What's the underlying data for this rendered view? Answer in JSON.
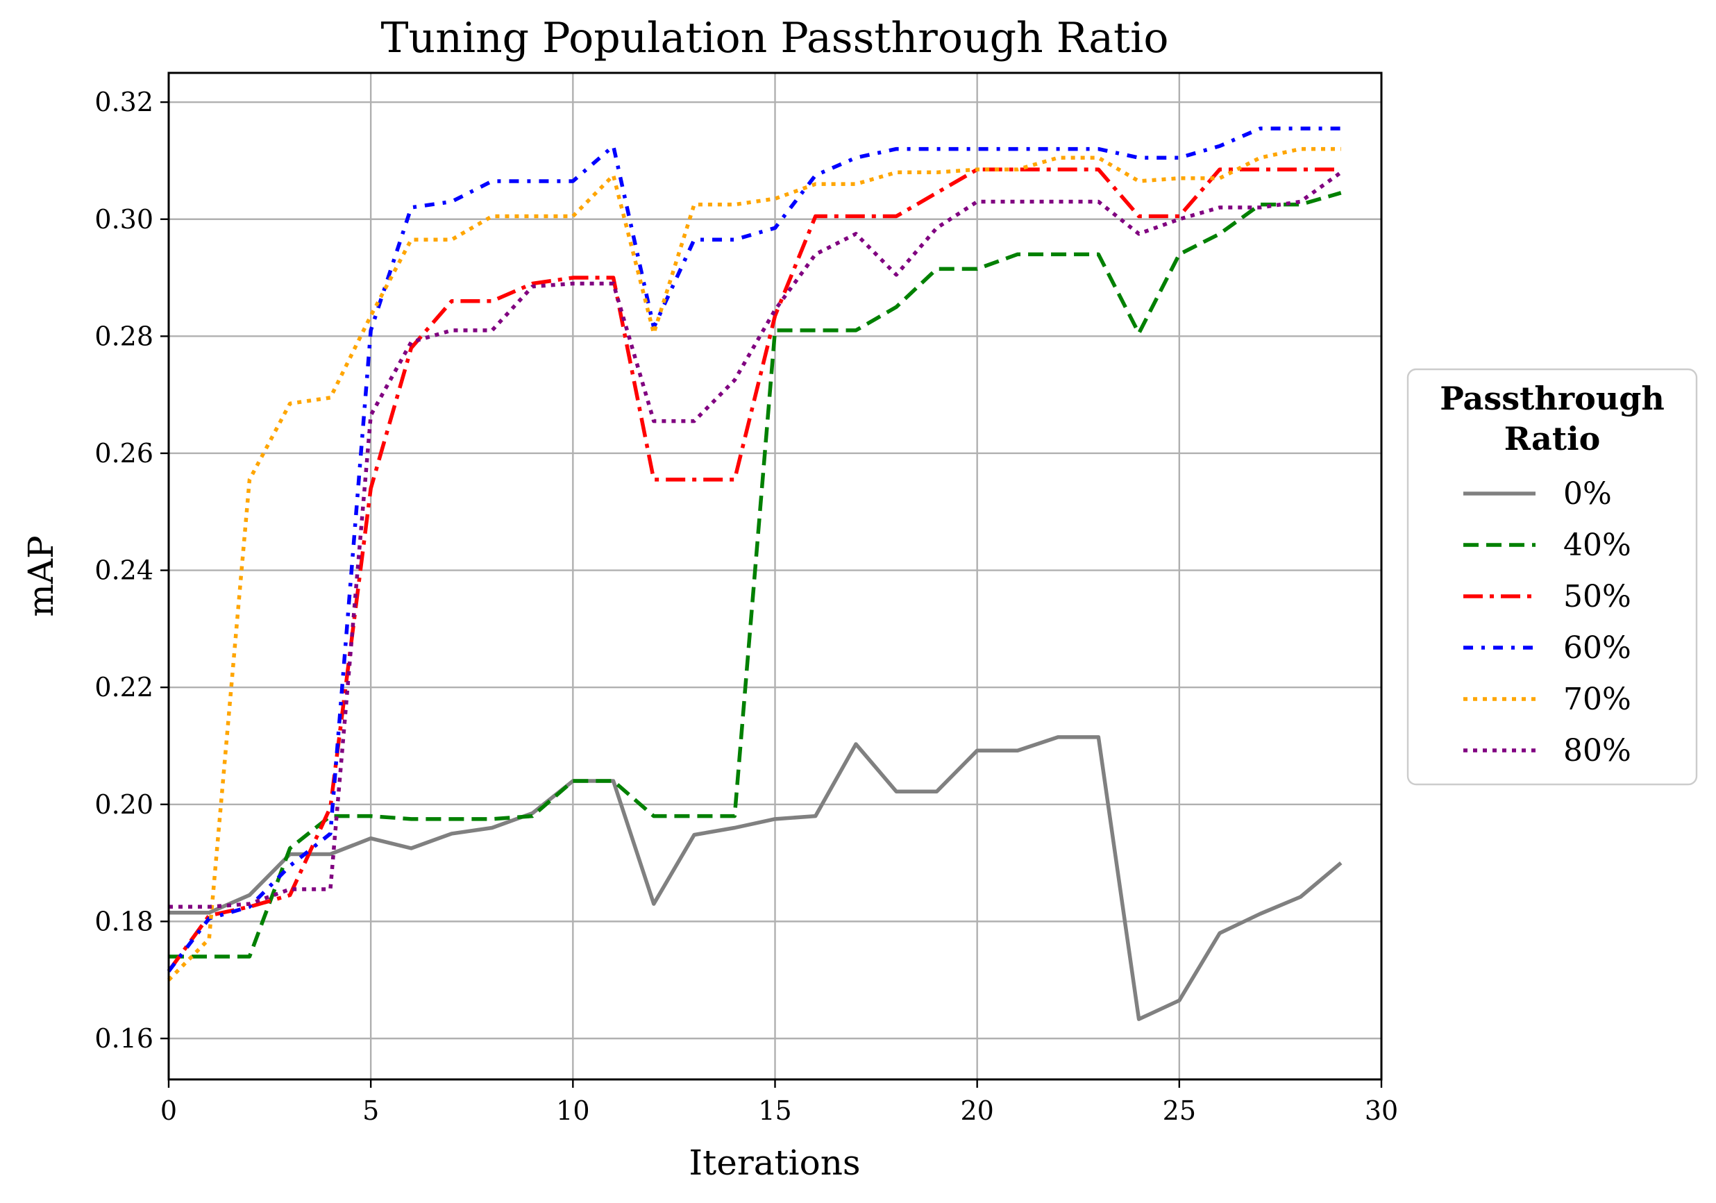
{
  "chart_data": {
    "type": "line",
    "title": "Tuning Population Passthrough Ratio",
    "xlabel": "Iterations",
    "ylabel": "mAP",
    "xlim": [
      0,
      30
    ],
    "ylim": [
      0.153,
      0.325
    ],
    "x_ticks": [
      0,
      5,
      10,
      15,
      20,
      25,
      30
    ],
    "y_ticks": [
      0.16,
      0.18,
      0.2,
      0.22,
      0.24,
      0.26,
      0.28,
      0.3,
      0.32
    ],
    "x_tick_labels": [
      "0",
      "5",
      "10",
      "15",
      "20",
      "25",
      "30"
    ],
    "y_tick_labels": [
      "0.16",
      "0.18",
      "0.20",
      "0.22",
      "0.24",
      "0.26",
      "0.28",
      "0.30",
      "0.32"
    ],
    "grid": true,
    "legend": {
      "title_line1": "Passthrough",
      "title_line2": "Ratio",
      "placement": "center-right, outside plot"
    },
    "x": [
      0,
      1,
      2,
      3,
      4,
      5,
      6,
      7,
      8,
      9,
      10,
      11,
      12,
      13,
      14,
      15,
      16,
      17,
      18,
      19,
      20,
      21,
      22,
      23,
      24,
      25,
      26,
      27,
      28,
      29
    ],
    "series": [
      {
        "name": "0%",
        "color": "#808080",
        "dash": "solid",
        "values": [
          0.1815,
          0.1815,
          0.1845,
          0.1915,
          0.1915,
          0.1942,
          0.1925,
          0.195,
          0.196,
          0.1985,
          0.204,
          0.204,
          0.183,
          0.1948,
          0.196,
          0.1975,
          0.198,
          0.2103,
          0.2022,
          0.2022,
          0.2092,
          0.2092,
          0.2115,
          0.2115,
          0.1633,
          0.1665,
          0.178,
          0.1813,
          0.1842,
          0.19
        ]
      },
      {
        "name": "40%",
        "color": "#008000",
        "dash": "dashed",
        "values": [
          0.174,
          0.174,
          0.174,
          0.1925,
          0.198,
          0.198,
          0.1975,
          0.1975,
          0.1975,
          0.198,
          0.204,
          0.204,
          0.198,
          0.198,
          0.198,
          0.281,
          0.281,
          0.281,
          0.285,
          0.2915,
          0.2915,
          0.294,
          0.294,
          0.294,
          0.2805,
          0.294,
          0.2975,
          0.3025,
          0.3025,
          0.3045
        ]
      },
      {
        "name": "50%",
        "color": "#ff0000",
        "dash": "dashdot",
        "values": [
          0.1715,
          0.181,
          0.1825,
          0.1845,
          0.1995,
          0.254,
          0.278,
          0.286,
          0.286,
          0.289,
          0.29,
          0.29,
          0.2555,
          0.2555,
          0.2555,
          0.2835,
          0.3005,
          0.3005,
          0.3005,
          0.3045,
          0.3085,
          0.3085,
          0.3085,
          0.3085,
          0.3005,
          0.3005,
          0.3085,
          0.3085,
          0.3085,
          0.3085
        ]
      },
      {
        "name": "60%",
        "color": "#0000ff",
        "dash": "dashdotdot",
        "values": [
          0.1715,
          0.1805,
          0.1825,
          0.1895,
          0.195,
          0.281,
          0.302,
          0.303,
          0.3065,
          0.3065,
          0.3065,
          0.3125,
          0.2815,
          0.2965,
          0.2965,
          0.2985,
          0.3075,
          0.3105,
          0.312,
          0.312,
          0.312,
          0.312,
          0.312,
          0.312,
          0.3105,
          0.3105,
          0.3125,
          0.3155,
          0.3155,
          0.3155
        ]
      },
      {
        "name": "70%",
        "color": "#ffa500",
        "dash": "dotted",
        "values": [
          0.17,
          0.177,
          0.2555,
          0.2685,
          0.2695,
          0.2835,
          0.2965,
          0.2965,
          0.3005,
          0.3005,
          0.3005,
          0.3075,
          0.2805,
          0.3025,
          0.3025,
          0.3035,
          0.306,
          0.306,
          0.308,
          0.308,
          0.3085,
          0.3085,
          0.3105,
          0.3105,
          0.3065,
          0.307,
          0.307,
          0.3105,
          0.312,
          0.312
        ]
      },
      {
        "name": "80%",
        "color": "#800080",
        "dash": "dotted",
        "values": [
          0.1825,
          0.1825,
          0.183,
          0.1855,
          0.1855,
          0.2665,
          0.279,
          0.281,
          0.281,
          0.2885,
          0.289,
          0.289,
          0.2655,
          0.2655,
          0.2725,
          0.2845,
          0.294,
          0.2975,
          0.2905,
          0.2985,
          0.303,
          0.303,
          0.303,
          0.303,
          0.2975,
          0.3,
          0.302,
          0.302,
          0.303,
          0.308
        ]
      }
    ]
  }
}
